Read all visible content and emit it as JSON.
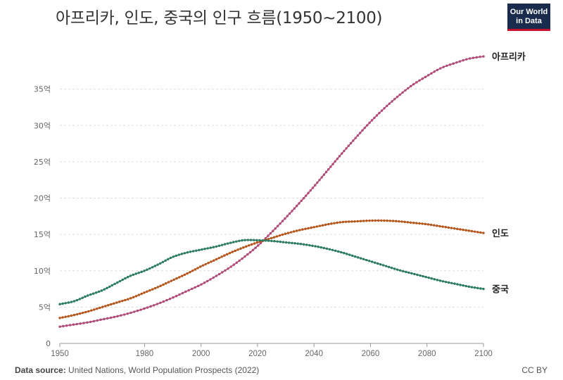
{
  "header": {
    "title": "아프리카, 인도, 중국의 인구 흐름(1950~2100)",
    "logo_line1": "Our World",
    "logo_line2": "in Data"
  },
  "footer": {
    "source_label": "Data source:",
    "source_text": "United Nations, World Population Prospects (2022)",
    "license": "CC BY"
  },
  "colors": {
    "africa": "#b04a78",
    "india": "#b5561c",
    "china": "#2c7c62",
    "grid": "#dddddd",
    "axis": "#999999"
  },
  "chart_data": {
    "type": "line",
    "title": "아프리카, 인도, 중국의 인구 흐름(1950~2100)",
    "xlabel": "",
    "ylabel": "",
    "xlim": [
      1950,
      2100
    ],
    "ylim": [
      0,
      40
    ],
    "grid": "horizontal",
    "x_ticks": [
      {
        "value": 1950,
        "label": "1950"
      },
      {
        "value": 1980,
        "label": "1980"
      },
      {
        "value": 2000,
        "label": "2000"
      },
      {
        "value": 2020,
        "label": "2020"
      },
      {
        "value": 2040,
        "label": "2040"
      },
      {
        "value": 2060,
        "label": "2060"
      },
      {
        "value": 2080,
        "label": "2080"
      },
      {
        "value": 2100,
        "label": "2100"
      }
    ],
    "y_ticks": [
      {
        "value": 0,
        "label": "0"
      },
      {
        "value": 5,
        "label": "5억"
      },
      {
        "value": 10,
        "label": "10억"
      },
      {
        "value": 15,
        "label": "15억"
      },
      {
        "value": 20,
        "label": "20억"
      },
      {
        "value": 25,
        "label": "25억"
      },
      {
        "value": 30,
        "label": "30억"
      },
      {
        "value": 35,
        "label": "35억"
      }
    ],
    "x": [
      1950,
      1955,
      1960,
      1965,
      1970,
      1975,
      1980,
      1985,
      1990,
      1995,
      2000,
      2005,
      2010,
      2015,
      2020,
      2025,
      2030,
      2035,
      2040,
      2045,
      2050,
      2055,
      2060,
      2065,
      2070,
      2075,
      2080,
      2085,
      2090,
      2095,
      2100
    ],
    "series": [
      {
        "key": "africa",
        "name": "아프리카",
        "values": [
          2.3,
          2.6,
          2.9,
          3.3,
          3.7,
          4.2,
          4.8,
          5.5,
          6.3,
          7.2,
          8.1,
          9.2,
          10.4,
          11.8,
          13.4,
          15.3,
          17.3,
          19.4,
          21.6,
          23.9,
          26.2,
          28.4,
          30.5,
          32.4,
          34.1,
          35.6,
          36.8,
          37.9,
          38.6,
          39.2,
          39.5
        ]
      },
      {
        "key": "india",
        "name": "인도",
        "values": [
          3.5,
          3.9,
          4.4,
          5.0,
          5.6,
          6.2,
          7.0,
          7.8,
          8.7,
          9.6,
          10.6,
          11.5,
          12.4,
          13.2,
          13.9,
          14.5,
          15.1,
          15.6,
          16.0,
          16.4,
          16.7,
          16.8,
          16.9,
          16.9,
          16.8,
          16.6,
          16.4,
          16.1,
          15.8,
          15.5,
          15.2
        ]
      },
      {
        "key": "china",
        "name": "중국",
        "values": [
          5.4,
          5.8,
          6.6,
          7.3,
          8.3,
          9.3,
          10.0,
          10.9,
          11.9,
          12.5,
          12.9,
          13.3,
          13.8,
          14.2,
          14.2,
          14.1,
          13.9,
          13.7,
          13.4,
          13.0,
          12.5,
          11.9,
          11.3,
          10.7,
          10.1,
          9.6,
          9.1,
          8.6,
          8.2,
          7.8,
          7.5
        ]
      }
    ]
  }
}
